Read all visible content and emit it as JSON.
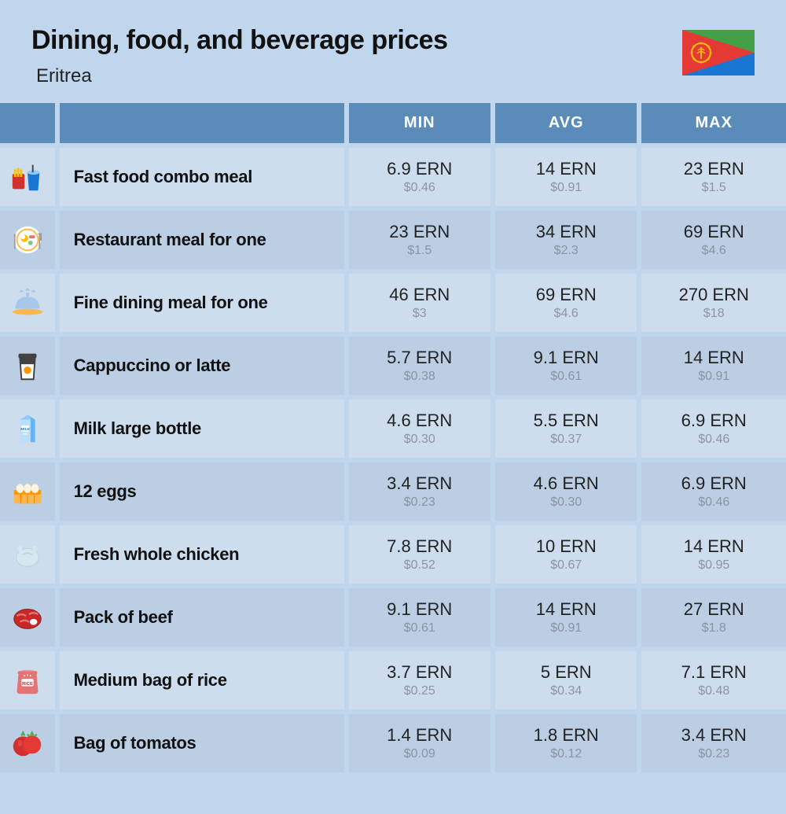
{
  "title": "Dining, food, and beverage prices",
  "subtitle": "Eritrea",
  "flag": {
    "green": "#43a047",
    "blue": "#1976d2",
    "red": "#e53935",
    "gold": "#ffc107"
  },
  "columns": [
    "MIN",
    "AVG",
    "MAX"
  ],
  "colors": {
    "page_bg": "#bfd6ed",
    "header_bg": "#5a8bb9",
    "row_light": "#cddded",
    "row_dark": "#bbcee4",
    "text_main": "#222",
    "text_sub": "#8a95a5",
    "title_fontsize": 34,
    "subtitle_fontsize": 24,
    "label_fontsize": 22,
    "value_fontsize": 22,
    "sub_fontsize": 16,
    "header_fontsize": 20
  },
  "rows": [
    {
      "icon": "fast-food",
      "label": "Fast food combo meal",
      "shade": "light",
      "min": {
        "v": "6.9 ERN",
        "s": "$0.46"
      },
      "avg": {
        "v": "14 ERN",
        "s": "$0.91"
      },
      "max": {
        "v": "23 ERN",
        "s": "$1.5"
      }
    },
    {
      "icon": "restaurant",
      "label": "Restaurant meal for one",
      "shade": "dark",
      "min": {
        "v": "23 ERN",
        "s": "$1.5"
      },
      "avg": {
        "v": "34 ERN",
        "s": "$2.3"
      },
      "max": {
        "v": "69 ERN",
        "s": "$4.6"
      }
    },
    {
      "icon": "fine-dining",
      "label": "Fine dining meal for one",
      "shade": "light",
      "min": {
        "v": "46 ERN",
        "s": "$3"
      },
      "avg": {
        "v": "69 ERN",
        "s": "$4.6"
      },
      "max": {
        "v": "270 ERN",
        "s": "$18"
      }
    },
    {
      "icon": "coffee",
      "label": "Cappuccino or latte",
      "shade": "dark",
      "min": {
        "v": "5.7 ERN",
        "s": "$0.38"
      },
      "avg": {
        "v": "9.1 ERN",
        "s": "$0.61"
      },
      "max": {
        "v": "14 ERN",
        "s": "$0.91"
      }
    },
    {
      "icon": "milk",
      "label": "Milk large bottle",
      "shade": "light",
      "min": {
        "v": "4.6 ERN",
        "s": "$0.30"
      },
      "avg": {
        "v": "5.5 ERN",
        "s": "$0.37"
      },
      "max": {
        "v": "6.9 ERN",
        "s": "$0.46"
      }
    },
    {
      "icon": "eggs",
      "label": "12 eggs",
      "shade": "dark",
      "min": {
        "v": "3.4 ERN",
        "s": "$0.23"
      },
      "avg": {
        "v": "4.6 ERN",
        "s": "$0.30"
      },
      "max": {
        "v": "6.9 ERN",
        "s": "$0.46"
      }
    },
    {
      "icon": "chicken",
      "label": "Fresh whole chicken",
      "shade": "light",
      "min": {
        "v": "7.8 ERN",
        "s": "$0.52"
      },
      "avg": {
        "v": "10 ERN",
        "s": "$0.67"
      },
      "max": {
        "v": "14 ERN",
        "s": "$0.95"
      }
    },
    {
      "icon": "beef",
      "label": "Pack of beef",
      "shade": "dark",
      "min": {
        "v": "9.1 ERN",
        "s": "$0.61"
      },
      "avg": {
        "v": "14 ERN",
        "s": "$0.91"
      },
      "max": {
        "v": "27 ERN",
        "s": "$1.8"
      }
    },
    {
      "icon": "rice",
      "label": "Medium bag of rice",
      "shade": "light",
      "min": {
        "v": "3.7 ERN",
        "s": "$0.25"
      },
      "avg": {
        "v": "5 ERN",
        "s": "$0.34"
      },
      "max": {
        "v": "7.1 ERN",
        "s": "$0.48"
      }
    },
    {
      "icon": "tomato",
      "label": "Bag of tomatos",
      "shade": "dark",
      "min": {
        "v": "1.4 ERN",
        "s": "$0.09"
      },
      "avg": {
        "v": "1.8 ERN",
        "s": "$0.12"
      },
      "max": {
        "v": "3.4 ERN",
        "s": "$0.23"
      }
    }
  ]
}
